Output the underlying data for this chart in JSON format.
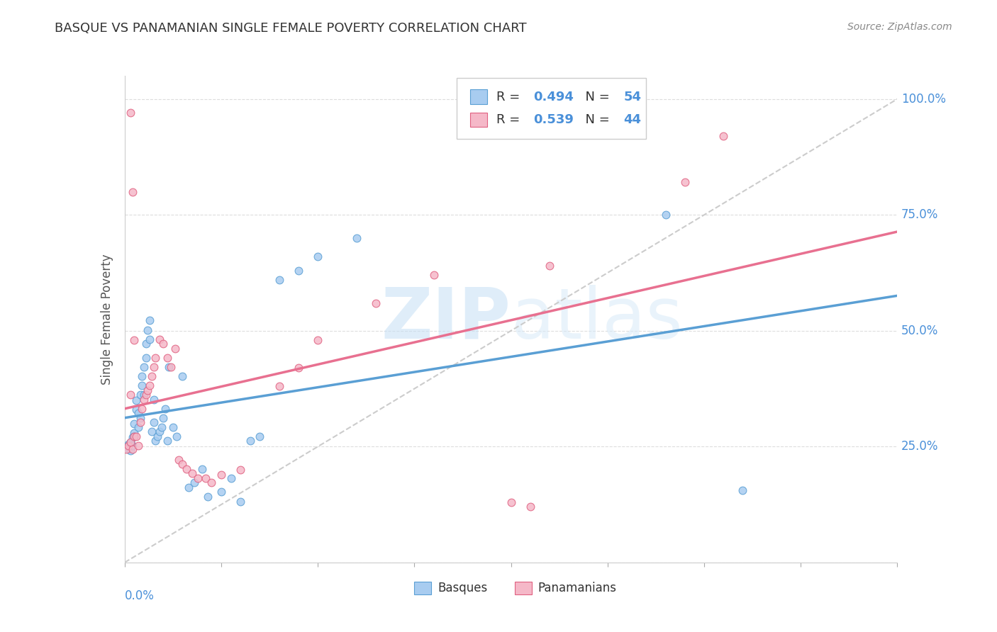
{
  "title": "BASQUE VS PANAMANIAN SINGLE FEMALE POVERTY CORRELATION CHART",
  "source": "Source: ZipAtlas.com",
  "ylabel": "Single Female Poverty",
  "legend_blue_R": "0.494",
  "legend_blue_N": "54",
  "legend_pink_R": "0.539",
  "legend_pink_N": "44",
  "watermark_zip": "ZIP",
  "watermark_atlas": "atlas",
  "blue_fill": "#A8CCF0",
  "blue_edge": "#5A9FD4",
  "pink_fill": "#F5B8C8",
  "pink_edge": "#E06080",
  "blue_line": "#5A9FD4",
  "pink_line": "#E87090",
  "diag_color": "#CCCCCC",
  "grid_color": "#DDDDDD",
  "tick_color": "#4A90D9",
  "title_color": "#333333",
  "source_color": "#888888",
  "ylabel_color": "#555555",
  "xlim": [
    0.0,
    0.4
  ],
  "ylim": [
    0.0,
    1.05
  ],
  "basque_x": [
    0.001,
    0.002,
    0.002,
    0.003,
    0.003,
    0.004,
    0.004,
    0.005,
    0.005,
    0.005,
    0.006,
    0.006,
    0.007,
    0.007,
    0.008,
    0.008,
    0.009,
    0.009,
    0.01,
    0.01,
    0.011,
    0.011,
    0.012,
    0.013,
    0.013,
    0.014,
    0.015,
    0.015,
    0.016,
    0.017,
    0.018,
    0.019,
    0.02,
    0.021,
    0.022,
    0.023,
    0.025,
    0.027,
    0.03,
    0.033,
    0.036,
    0.04,
    0.043,
    0.05,
    0.055,
    0.06,
    0.065,
    0.07,
    0.08,
    0.09,
    0.1,
    0.12,
    0.28,
    0.32
  ],
  "basque_y": [
    0.25,
    0.245,
    0.255,
    0.26,
    0.242,
    0.27,
    0.252,
    0.28,
    0.3,
    0.272,
    0.33,
    0.35,
    0.292,
    0.322,
    0.362,
    0.312,
    0.402,
    0.382,
    0.422,
    0.362,
    0.442,
    0.472,
    0.502,
    0.482,
    0.522,
    0.282,
    0.302,
    0.352,
    0.262,
    0.272,
    0.282,
    0.292,
    0.312,
    0.332,
    0.262,
    0.422,
    0.292,
    0.272,
    0.402,
    0.162,
    0.172,
    0.202,
    0.142,
    0.152,
    0.182,
    0.132,
    0.262,
    0.272,
    0.61,
    0.63,
    0.66,
    0.7,
    0.75,
    0.155
  ],
  "panamanian_x": [
    0.001,
    0.002,
    0.003,
    0.003,
    0.004,
    0.005,
    0.005,
    0.006,
    0.007,
    0.008,
    0.009,
    0.01,
    0.011,
    0.012,
    0.013,
    0.014,
    0.015,
    0.016,
    0.018,
    0.02,
    0.022,
    0.024,
    0.026,
    0.028,
    0.03,
    0.032,
    0.035,
    0.038,
    0.042,
    0.045,
    0.05,
    0.06,
    0.08,
    0.09,
    0.1,
    0.13,
    0.16,
    0.2,
    0.21,
    0.22,
    0.29,
    0.31,
    0.003,
    0.004
  ],
  "panamanian_y": [
    0.245,
    0.252,
    0.26,
    0.362,
    0.245,
    0.48,
    0.272,
    0.272,
    0.252,
    0.302,
    0.332,
    0.352,
    0.362,
    0.372,
    0.382,
    0.402,
    0.422,
    0.442,
    0.482,
    0.472,
    0.442,
    0.422,
    0.462,
    0.222,
    0.212,
    0.202,
    0.192,
    0.182,
    0.182,
    0.172,
    0.19,
    0.2,
    0.38,
    0.42,
    0.48,
    0.56,
    0.62,
    0.13,
    0.12,
    0.64,
    0.82,
    0.92,
    0.97,
    0.8
  ]
}
